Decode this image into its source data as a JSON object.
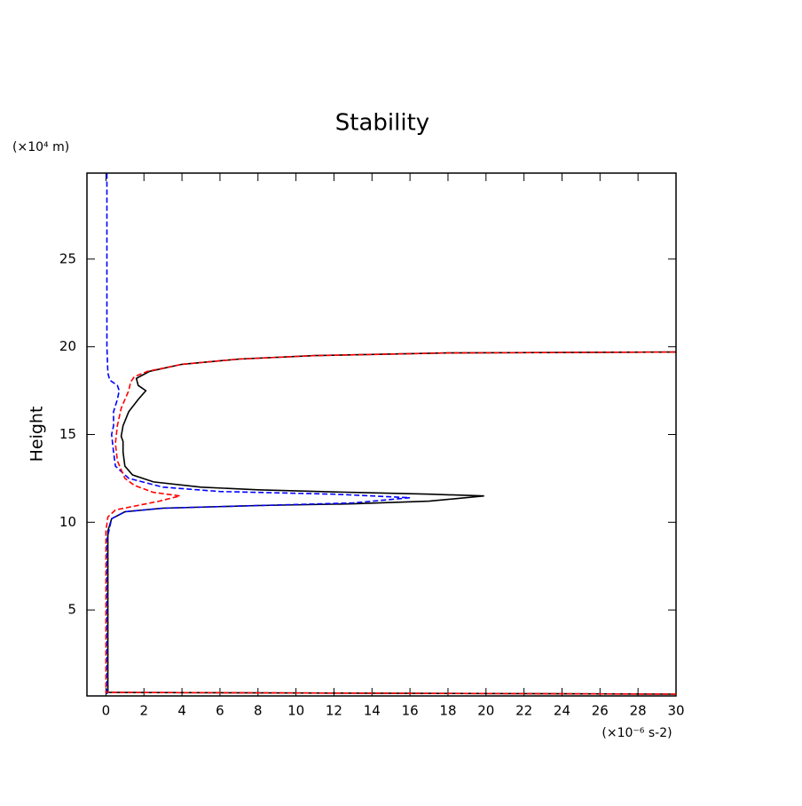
{
  "chart_data": {
    "type": "line",
    "title": "Stability",
    "y_label": "Height",
    "y_unit": "(×10⁴ m)",
    "x_unit": "(×10⁻⁶ s-2)",
    "xlim": [
      -1,
      30
    ],
    "ylim": [
      0.1,
      29.9
    ],
    "xticks": [
      0,
      2,
      4,
      6,
      8,
      10,
      12,
      14,
      16,
      18,
      20,
      22,
      24,
      26,
      28,
      30
    ],
    "yticks": [
      5,
      10,
      15,
      20,
      25
    ],
    "series": [
      {
        "color": "#000000",
        "dash": false,
        "y": [
          0.2,
          0.3,
          5,
          8,
          9.5,
          10.2,
          10.6,
          10.8,
          10.95,
          11.05,
          11.2,
          11.5,
          11.6,
          11.7,
          11.85,
          12.0,
          12.3,
          12.7,
          13.2,
          14.0,
          14.6,
          14.9,
          15.5,
          16.3,
          17.0,
          17.5,
          17.8,
          18.2,
          18.6,
          19.0,
          19.3,
          19.5,
          19.65,
          19.7
        ],
        "x": [
          30,
          0.1,
          0.1,
          0.1,
          0.1,
          0.3,
          1,
          3,
          8,
          13,
          17,
          19.9,
          17,
          13,
          8,
          5,
          2.5,
          1.4,
          1.0,
          0.9,
          0.9,
          0.8,
          0.9,
          1.2,
          1.7,
          2.1,
          1.7,
          1.6,
          2.3,
          4,
          7,
          11,
          18,
          30
        ]
      },
      {
        "color": "#0000ff",
        "dash": true,
        "y": [
          0.2,
          5,
          9,
          10.2,
          10.6,
          10.8,
          10.95,
          11.1,
          11.4,
          11.6,
          11.75,
          12.0,
          12.5,
          13.2,
          14.0,
          15.0,
          15.5,
          16.3,
          17.0,
          17.5,
          17.8,
          18.1,
          18.5,
          20,
          29.9
        ],
        "x": [
          0.05,
          0.05,
          0.05,
          0.3,
          1,
          3,
          8,
          13,
          16,
          12,
          6,
          3,
          1.2,
          0.5,
          0.4,
          0.3,
          0.4,
          0.4,
          0.6,
          0.7,
          0.6,
          0.2,
          0.1,
          0.05,
          0.05
        ]
      },
      {
        "color": "#ff0000",
        "dash": true,
        "y": [
          0.2,
          0.3,
          9.5,
          10.3,
          10.7,
          11.2,
          11.5,
          11.7,
          12.1,
          12.5,
          13.5,
          14.5,
          15.5,
          16.5,
          17.5,
          18.0,
          18.3,
          18.6,
          19.0,
          19.3,
          19.5,
          19.65,
          19.7
        ],
        "x": [
          30,
          0.0,
          0.0,
          0.1,
          0.5,
          2.8,
          3.9,
          2.5,
          1.5,
          1,
          0.6,
          0.5,
          0.6,
          0.8,
          1.2,
          1.3,
          1.5,
          2.2,
          4,
          7,
          11,
          18,
          30
        ]
      }
    ]
  }
}
